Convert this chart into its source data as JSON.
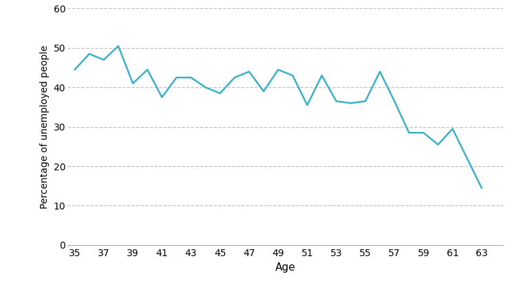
{
  "ages": [
    35,
    36,
    37,
    38,
    39,
    40,
    41,
    42,
    43,
    44,
    45,
    46,
    47,
    48,
    49,
    50,
    51,
    52,
    53,
    54,
    55,
    56,
    57,
    58,
    59,
    60,
    61,
    62,
    63
  ],
  "values": [
    44.5,
    48.5,
    47.0,
    50.5,
    41.0,
    44.5,
    37.5,
    42.5,
    42.5,
    40.0,
    38.5,
    42.5,
    44.0,
    39.0,
    44.5,
    43.0,
    35.5,
    43.0,
    36.5,
    36.0,
    36.5,
    44.0,
    36.5,
    28.5,
    28.5,
    25.5,
    29.5,
    22.0,
    14.5
  ],
  "line_color": "#3AAFC8",
  "xlabel": "Age",
  "ylabel": "Percentage of unemployed people",
  "xlim": [
    34.5,
    64.5
  ],
  "ylim": [
    0,
    60
  ],
  "yticks": [
    0,
    10,
    20,
    30,
    40,
    50,
    60
  ],
  "xticks": [
    35,
    37,
    39,
    41,
    43,
    45,
    47,
    49,
    51,
    53,
    55,
    57,
    59,
    61,
    63
  ],
  "grid_color": "#c0c0c0",
  "background_color": "#ffffff",
  "line_width": 1.8,
  "xlabel_fontsize": 11,
  "ylabel_fontsize": 10,
  "tick_fontsize": 10
}
